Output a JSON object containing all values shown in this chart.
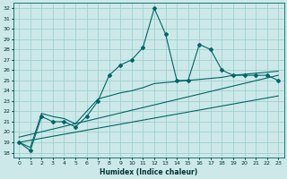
{
  "xlabel": "Humidex (Indice chaleur)",
  "ylabel": "",
  "bg_color": "#cce8e8",
  "grid_color": "#99cccc",
  "line_color": "#006666",
  "xlim": [
    -0.5,
    23.5
  ],
  "ylim": [
    17.5,
    32.5
  ],
  "xticks": [
    0,
    1,
    2,
    3,
    4,
    5,
    6,
    7,
    8,
    9,
    10,
    11,
    12,
    13,
    14,
    15,
    16,
    17,
    18,
    19,
    20,
    21,
    22,
    23
  ],
  "yticks": [
    18,
    19,
    20,
    21,
    22,
    23,
    24,
    25,
    26,
    27,
    28,
    29,
    30,
    31,
    32
  ],
  "line1_x": [
    0,
    1,
    2,
    3,
    4,
    5,
    6,
    7,
    8,
    9,
    10,
    11,
    12,
    13,
    14,
    15,
    16,
    17,
    18,
    19,
    20,
    21,
    22,
    23
  ],
  "line1_y": [
    19.0,
    18.2,
    21.5,
    21.0,
    21.0,
    20.5,
    21.5,
    23.0,
    25.5,
    26.5,
    27.0,
    28.2,
    32.0,
    29.5,
    25.0,
    25.0,
    28.5,
    28.0,
    26.0,
    25.5,
    25.5,
    25.5,
    25.5,
    25.0
  ],
  "line2_x": [
    0,
    1,
    2,
    3,
    4,
    5,
    6,
    7,
    8,
    9,
    10,
    11,
    12,
    13,
    14,
    15,
    16,
    17,
    18,
    19,
    20,
    21,
    22,
    23
  ],
  "line2_y": [
    19.0,
    18.5,
    21.8,
    21.5,
    21.3,
    20.8,
    22.0,
    23.2,
    23.5,
    23.8,
    24.0,
    24.3,
    24.7,
    24.8,
    24.9,
    25.0,
    25.1,
    25.2,
    25.3,
    25.5,
    25.6,
    25.7,
    25.8,
    25.9
  ],
  "line3_x": [
    0,
    23
  ],
  "line3_y": [
    19.0,
    23.5
  ],
  "line4_x": [
    0,
    23
  ],
  "line4_y": [
    19.5,
    25.5
  ]
}
